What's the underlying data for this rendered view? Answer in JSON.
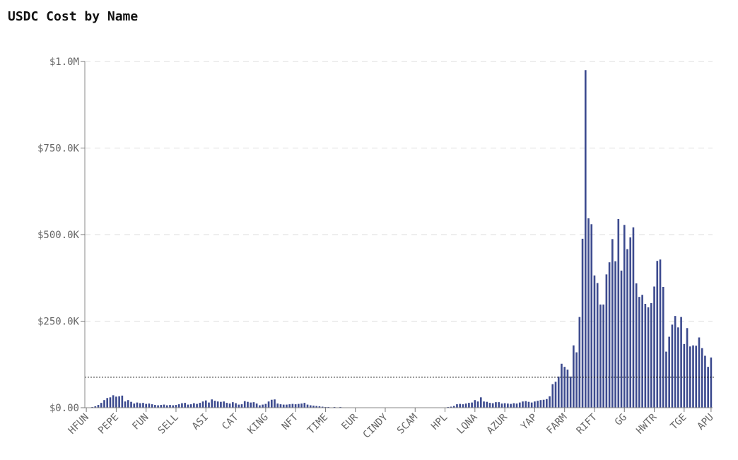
{
  "title": "USDC Cost by Name",
  "chart_data": {
    "type": "bar",
    "title": "USDC Cost by Name",
    "xlabel": "",
    "ylabel": "",
    "ylim": [
      0,
      1000000
    ],
    "y_ticks": [
      0,
      250000,
      500000,
      750000,
      1000000
    ],
    "y_tick_labels": [
      "$0.00",
      "$250.0K",
      "$500.0K",
      "$750.0K",
      "$1.0M"
    ],
    "x_tick_labels": [
      "HFUN",
      "PEPE",
      "FUN",
      "SELL",
      "ASI",
      "CAT",
      "KING",
      "NFT",
      "TIME",
      "EUR",
      "CINDY",
      "SCAM",
      "HPL",
      "LQNA",
      "AZUR",
      "YAP",
      "FARM",
      "RIFT",
      "GG",
      "HWTR",
      "TGE",
      "APU"
    ],
    "x_tick_every": 10,
    "reference_line": 88000,
    "grid": "horizontal-dashed",
    "bar_color": "#3d4b8f",
    "values": [
      0,
      1000,
      2000,
      4000,
      8000,
      14000,
      22000,
      28000,
      30000,
      36000,
      32000,
      33000,
      35000,
      18000,
      22000,
      17000,
      12000,
      15000,
      13000,
      14000,
      11000,
      12000,
      10000,
      8000,
      7000,
      8000,
      9000,
      7000,
      8000,
      7000,
      8000,
      10000,
      13000,
      14000,
      9000,
      10000,
      13000,
      11000,
      14000,
      18000,
      21000,
      15000,
      24000,
      20000,
      18000,
      17000,
      18000,
      14000,
      12000,
      16000,
      13000,
      9000,
      10000,
      19000,
      17000,
      15000,
      16000,
      12000,
      7000,
      9000,
      11000,
      18000,
      23000,
      24000,
      12000,
      10000,
      9000,
      9000,
      10000,
      11000,
      10000,
      11000,
      12000,
      14000,
      9000,
      7000,
      6000,
      5000,
      4000,
      3000,
      2000,
      2000,
      1000,
      2000,
      1000,
      2000,
      1000,
      1000,
      1000,
      1000,
      1000,
      1000,
      1000,
      1000,
      1000,
      1000,
      1000,
      1000,
      1000,
      1000,
      1000,
      1000,
      1000,
      1000,
      1000,
      1000,
      1000,
      1000,
      1000,
      1000,
      1000,
      1000,
      1000,
      1000,
      1000,
      1000,
      1000,
      1000,
      1000,
      1000,
      1000,
      2000,
      3000,
      5000,
      10000,
      11000,
      10000,
      12000,
      14000,
      15000,
      22000,
      18000,
      30000,
      18000,
      17000,
      14000,
      13000,
      16000,
      16000,
      12000,
      13000,
      12000,
      11000,
      13000,
      12000,
      15000,
      18000,
      19000,
      17000,
      15000,
      18000,
      20000,
      22000,
      23000,
      25000,
      33000,
      68000,
      75000,
      90000,
      127000,
      118000,
      110000,
      90000,
      180000,
      160000,
      262000,
      488000,
      975000,
      547000,
      530000,
      382000,
      360000,
      298000,
      298000,
      385000,
      420000,
      487000,
      423000,
      545000,
      396000,
      528000,
      458000,
      492000,
      521000,
      359000,
      320000,
      326000,
      300000,
      290000,
      302000,
      350000,
      424000,
      428000,
      349000,
      162000,
      205000,
      240000,
      265000,
      232000,
      262000,
      184000,
      230000,
      177000,
      180000,
      179000,
      203000,
      172000,
      150000,
      118000,
      145000
    ]
  }
}
